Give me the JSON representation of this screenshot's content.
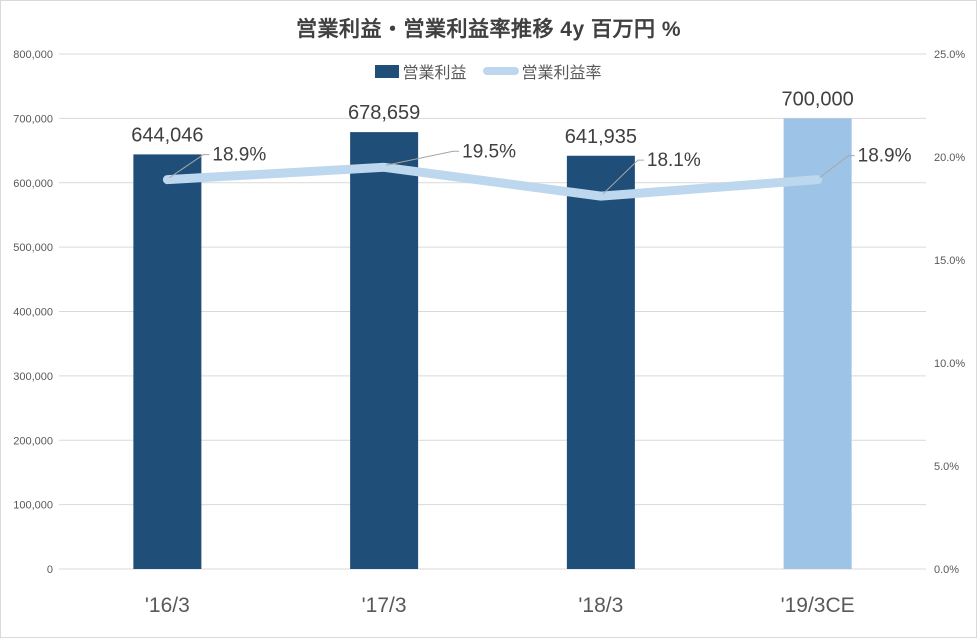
{
  "chart_data": {
    "type": "bar+line combo",
    "title": "営業利益・営業利益率推移 4y 百万円 %",
    "categories": [
      "'16/3",
      "'17/3",
      "'18/3",
      "'19/3CE"
    ],
    "series": [
      {
        "name": "営業利益",
        "type": "bar",
        "axis": "left",
        "values": [
          644046,
          678659,
          641935,
          700000
        ],
        "labels": [
          "644,046",
          "678,659",
          "641,935",
          "700,000"
        ],
        "bar_colors": [
          "#1F4E79",
          "#1F4E79",
          "#1F4E79",
          "#9DC3E6"
        ]
      },
      {
        "name": "営業利益率",
        "type": "line",
        "axis": "right",
        "values": [
          18.9,
          19.5,
          18.1,
          18.9
        ],
        "labels": [
          "18.9%",
          "19.5%",
          "18.1%",
          "18.9%"
        ],
        "color": "#BDD7EE"
      }
    ],
    "left_axis": {
      "min": 0,
      "max": 800000,
      "step": 100000,
      "ticks": [
        "0",
        "100,000",
        "200,000",
        "300,000",
        "400,000",
        "500,000",
        "600,000",
        "700,000",
        "800,000"
      ]
    },
    "right_axis": {
      "min": 0,
      "max": 25,
      "step": 5,
      "ticks": [
        "0.0%",
        "5.0%",
        "10.0%",
        "15.0%",
        "20.0%",
        "25.0%"
      ]
    },
    "grid": "horizontal",
    "legend_position": "top-center"
  },
  "colors": {
    "bar_main": "#1F4E79",
    "bar_forecast": "#9DC3E6",
    "line": "#BDD7EE",
    "grid": "#d9d9d9",
    "axis_text": "#595959",
    "data_label_text": "#404040",
    "leader_line": "#a6a6a6",
    "border": "#d9d9d9",
    "title_text": "#404040"
  }
}
